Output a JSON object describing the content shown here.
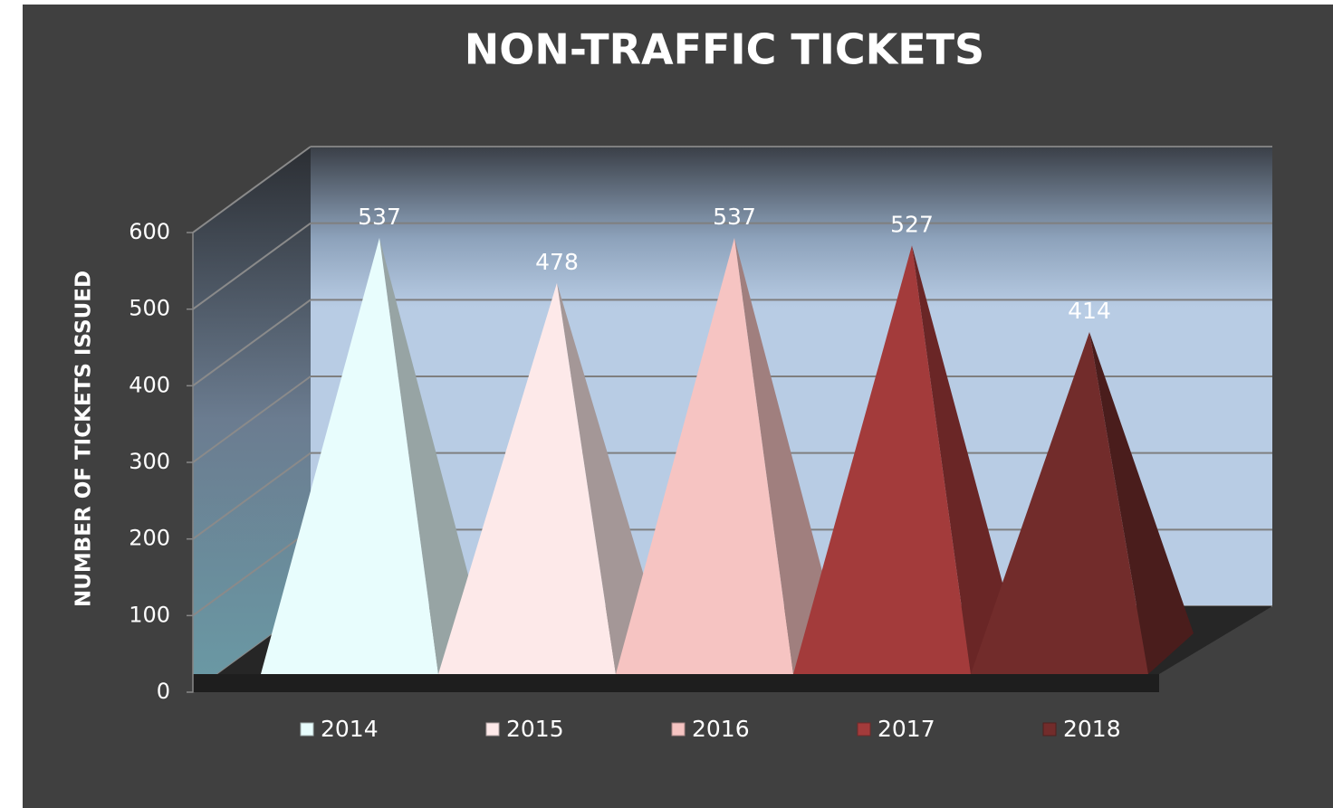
{
  "chart_data": {
    "type": "pyramid3d",
    "title": "NON-TRAFFIC TICKETS",
    "y_label": "NUMBER  OF TICKETS  ISSUED",
    "series": [
      {
        "name": "2014",
        "color": "#e8fdfd",
        "values": [
          537
        ]
      },
      {
        "name": "2015",
        "color": "#fde9e9",
        "values": [
          478
        ]
      },
      {
        "name": "2016",
        "color": "#f6c4c2",
        "values": [
          537
        ]
      },
      {
        "name": "2017",
        "color": "#a33b3b",
        "values": [
          527
        ]
      },
      {
        "name": "2018",
        "color": "#722c2b",
        "values": [
          414
        ]
      }
    ],
    "ylim": [
      0,
      600
    ],
    "yticks": [
      0,
      100,
      200,
      300,
      400,
      500,
      600
    ],
    "grid": true,
    "legend": "bottom"
  }
}
